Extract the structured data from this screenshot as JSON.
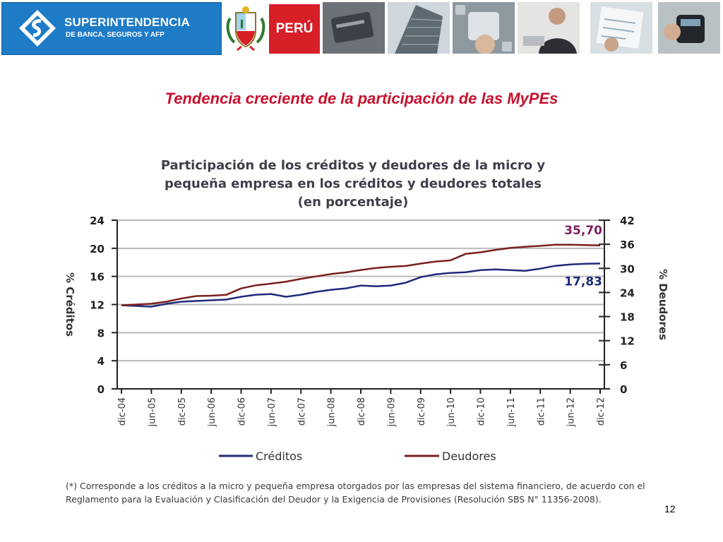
{
  "header": {
    "org_name": "SUPERINTENDENCIA",
    "org_sub": "DE BANCA, SEGUROS Y AFP",
    "country": "PERÚ",
    "brand_color": "#1e7bc6",
    "peru_color": "#d61f26"
  },
  "slide": {
    "title": "Tendencia creciente de la participación de las MyPEs",
    "page_number": "12"
  },
  "footnote": "(*) Corresponde a los créditos a la micro y pequeña empresa otorgados por las empresas del sistema financiero, de acuerdo con el Reglamento para la Evaluación y Clasificación del Deudor y la Exigencia de Provisiones (Resolución SBS N° 11356-2008).",
  "chart_data": {
    "type": "line",
    "title_lines": [
      "Participación de los créditos y deudores de la micro y",
      "pequeña empresa en los créditos y deudores totales",
      "(en porcentaje)"
    ],
    "categories": [
      "dic-04",
      "jun-05",
      "dic-05",
      "jun-06",
      "dic-06",
      "jun-07",
      "dic-07",
      "jun-08",
      "dic-08",
      "jun-09",
      "dic-09",
      "jun-10",
      "dic-10",
      "jun-11",
      "dic-11",
      "jun-12",
      "dic-12"
    ],
    "ylabel_left": "% Créditos",
    "ylabel_right": "% Deudores",
    "ylim_left": [
      0,
      24
    ],
    "yticks_left": [
      0,
      4,
      8,
      12,
      16,
      20,
      24
    ],
    "ylim_right": [
      0,
      42
    ],
    "yticks_right": [
      0,
      6,
      12,
      18,
      24,
      30,
      36,
      42
    ],
    "grid": true,
    "legend_position": "bottom",
    "series": [
      {
        "name": "Créditos",
        "axis": "left",
        "color": "#1f2a7a",
        "x": [
          0,
          0.5,
          1,
          1.5,
          2,
          2.5,
          3,
          3.5,
          4,
          4.5,
          5,
          5.5,
          6,
          6.5,
          7,
          7.5,
          8,
          8.5,
          9,
          9.5,
          10,
          10.5,
          11,
          11.5,
          12,
          12.5,
          13,
          13.5,
          14,
          14.5,
          15,
          15.5,
          16
        ],
        "values": [
          11.9,
          11.8,
          11.7,
          12.1,
          12.4,
          12.5,
          12.6,
          12.7,
          13.1,
          13.4,
          13.5,
          13.1,
          13.4,
          13.8,
          14.1,
          14.3,
          14.7,
          14.6,
          14.7,
          15.1,
          15.9,
          16.3,
          16.5,
          16.6,
          16.9,
          17.0,
          16.9,
          16.8,
          17.1,
          17.5,
          17.7,
          17.8,
          17.83
        ],
        "end_label": "17,83"
      },
      {
        "name": "Deudores",
        "axis": "right",
        "color": "#7a1f1f",
        "x": [
          0,
          0.5,
          1,
          1.5,
          2,
          2.5,
          3,
          3.5,
          4,
          4.5,
          5,
          5.5,
          6,
          6.5,
          7,
          7.5,
          8,
          8.5,
          9,
          9.5,
          10,
          10.5,
          11,
          11.5,
          12,
          12.5,
          13,
          13.5,
          14,
          14.5,
          15,
          15.5,
          16
        ],
        "values": [
          20.8,
          21.0,
          21.2,
          21.7,
          22.5,
          23.1,
          23.2,
          23.4,
          25.0,
          25.8,
          26.2,
          26.7,
          27.4,
          28.0,
          28.6,
          29.0,
          29.6,
          30.1,
          30.4,
          30.6,
          31.2,
          31.7,
          32.0,
          33.6,
          34.0,
          34.6,
          35.1,
          35.4,
          35.6,
          35.9,
          35.9,
          35.8,
          35.7
        ],
        "end_label": "35,70",
        "end_label_color": "#7a2060"
      }
    ]
  }
}
